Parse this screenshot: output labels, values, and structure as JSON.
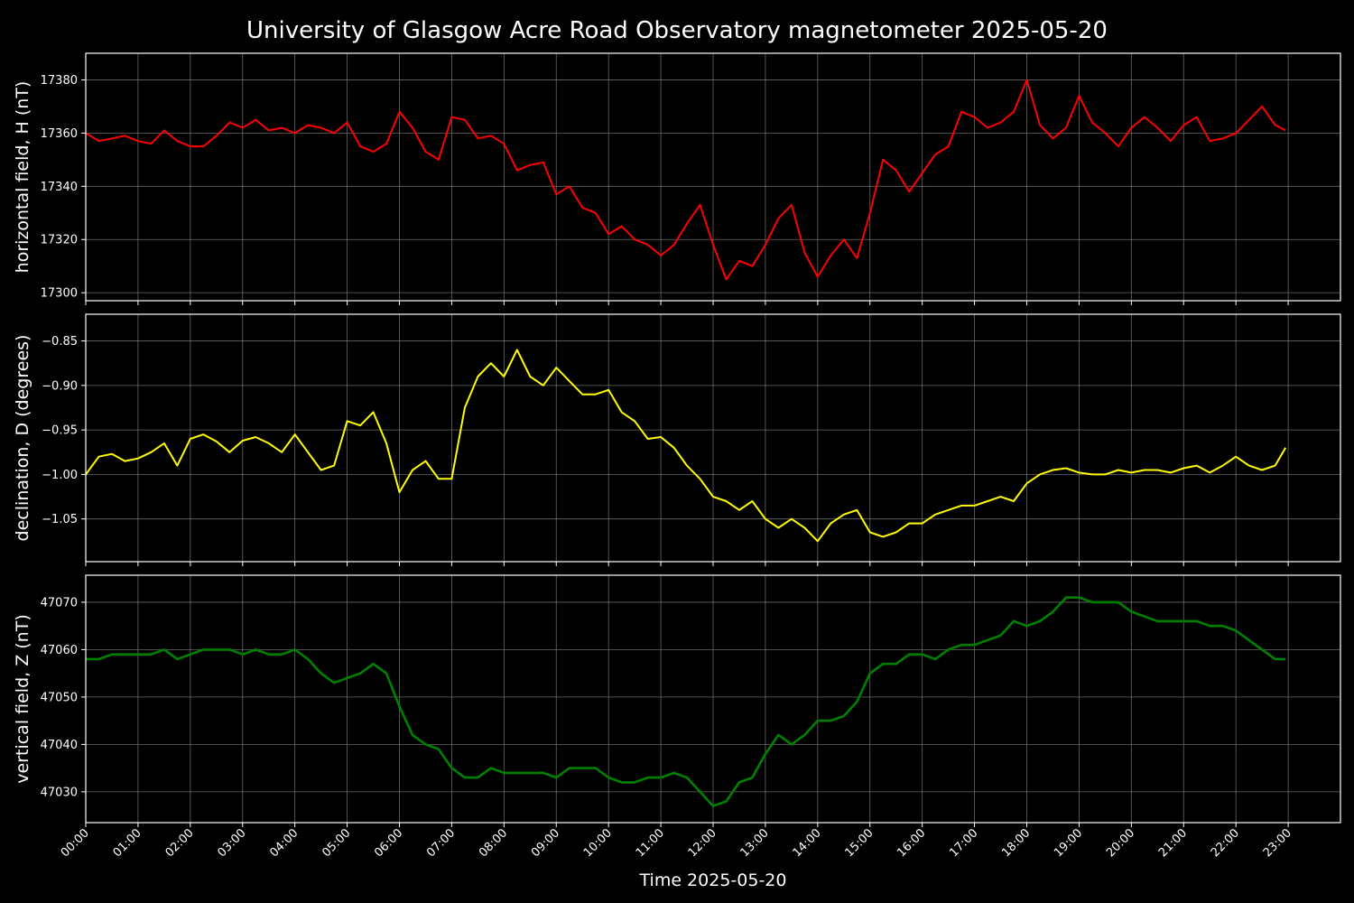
{
  "chart_data": {
    "type": "line",
    "title": "University of Glasgow Acre Road Observatory magnetometer 2025-05-20",
    "xlabel": "Time 2025-05-20",
    "x_unit": "hours",
    "xlim": [
      0,
      24
    ],
    "x_ticks": [
      "00:00",
      "01:00",
      "02:00",
      "03:00",
      "04:00",
      "05:00",
      "06:00",
      "07:00",
      "08:00",
      "09:00",
      "10:00",
      "11:00",
      "12:00",
      "13:00",
      "14:00",
      "15:00",
      "16:00",
      "17:00",
      "18:00",
      "19:00",
      "20:00",
      "21:00",
      "22:00",
      "23:00"
    ],
    "grid": true,
    "background": "#000000",
    "panels": [
      {
        "ylabel": "horizontal field, H (nT)",
        "color": "#ff0000",
        "ylim": [
          17297,
          17390
        ],
        "y_ticks": [
          17300,
          17320,
          17340,
          17360,
          17380
        ],
        "y_tick_labels": [
          "17300",
          "17320",
          "17340",
          "17360",
          "17380"
        ],
        "x": [
          0,
          0.25,
          0.5,
          0.75,
          1,
          1.25,
          1.5,
          1.75,
          2,
          2.25,
          2.5,
          2.75,
          3,
          3.25,
          3.5,
          3.75,
          4,
          4.25,
          4.5,
          4.75,
          5,
          5.25,
          5.5,
          5.75,
          6,
          6.25,
          6.5,
          6.75,
          7,
          7.25,
          7.5,
          7.75,
          8,
          8.25,
          8.5,
          8.75,
          9,
          9.25,
          9.5,
          9.75,
          10,
          10.25,
          10.5,
          10.75,
          11,
          11.25,
          11.5,
          11.75,
          12,
          12.25,
          12.5,
          12.75,
          13,
          13.25,
          13.5,
          13.75,
          14,
          14.25,
          14.5,
          14.75,
          15,
          15.25,
          15.5,
          15.75,
          16,
          16.25,
          16.5,
          16.75,
          17,
          17.25,
          17.5,
          17.75,
          18,
          18.25,
          18.5,
          18.75,
          19,
          19.25,
          19.5,
          19.75,
          20,
          20.25,
          20.5,
          20.75,
          21,
          21.25,
          21.5,
          21.75,
          22,
          22.25,
          22.5,
          22.75,
          22.95
        ],
        "values": [
          17360,
          17357,
          17358,
          17359,
          17357,
          17356,
          17361,
          17357,
          17355,
          17355,
          17359,
          17364,
          17362,
          17365,
          17361,
          17362,
          17360,
          17363,
          17362,
          17360,
          17364,
          17355,
          17353,
          17356,
          17368,
          17362,
          17353,
          17350,
          17366,
          17365,
          17358,
          17359,
          17356,
          17346,
          17348,
          17349,
          17337,
          17340,
          17332,
          17330,
          17322,
          17325,
          17320,
          17318,
          17314,
          17318,
          17326,
          17333,
          17318,
          17305,
          17312,
          17310,
          17318,
          17328,
          17333,
          17315,
          17306,
          17314,
          17320,
          17313,
          17330,
          17350,
          17346,
          17338,
          17345,
          17352,
          17355,
          17368,
          17366,
          17362,
          17364,
          17368,
          17380,
          17363,
          17358,
          17362,
          17374,
          17364,
          17360,
          17355,
          17362,
          17366,
          17362,
          17357,
          17363,
          17366,
          17357,
          17358,
          17360,
          17365,
          17370,
          17363,
          17361
        ]
      },
      {
        "ylabel": "declination, D (degrees)",
        "color": "#ffff00",
        "ylim": [
          -1.098,
          -0.82
        ],
        "y_ticks": [
          -1.05,
          -1.0,
          -0.95,
          -0.9,
          -0.85
        ],
        "y_tick_labels": [
          "−1.05",
          "−1.00",
          "−0.95",
          "−0.90",
          "−0.85"
        ],
        "x": [
          0,
          0.25,
          0.5,
          0.75,
          1,
          1.25,
          1.5,
          1.75,
          2,
          2.25,
          2.5,
          2.75,
          3,
          3.25,
          3.5,
          3.75,
          4,
          4.25,
          4.5,
          4.75,
          5,
          5.25,
          5.5,
          5.75,
          6,
          6.25,
          6.5,
          6.75,
          7,
          7.25,
          7.5,
          7.75,
          8,
          8.25,
          8.5,
          8.75,
          9,
          9.25,
          9.5,
          9.75,
          10,
          10.25,
          10.5,
          10.75,
          11,
          11.25,
          11.5,
          11.75,
          12,
          12.25,
          12.5,
          12.75,
          13,
          13.25,
          13.5,
          13.75,
          14,
          14.25,
          14.5,
          14.75,
          15,
          15.25,
          15.5,
          15.75,
          16,
          16.25,
          16.5,
          16.75,
          17,
          17.25,
          17.5,
          17.75,
          18,
          18.25,
          18.5,
          18.75,
          19,
          19.25,
          19.5,
          19.75,
          20,
          20.25,
          20.5,
          20.75,
          21,
          21.25,
          21.5,
          21.75,
          22,
          22.25,
          22.5,
          22.75,
          22.95
        ],
        "values": [
          -1.0,
          -0.98,
          -0.977,
          -0.985,
          -0.982,
          -0.975,
          -0.965,
          -0.99,
          -0.96,
          -0.955,
          -0.963,
          -0.975,
          -0.962,
          -0.958,
          -0.965,
          -0.975,
          -0.955,
          -0.975,
          -0.995,
          -0.99,
          -0.94,
          -0.945,
          -0.93,
          -0.965,
          -1.02,
          -0.995,
          -0.985,
          -1.005,
          -1.005,
          -0.925,
          -0.89,
          -0.875,
          -0.89,
          -0.86,
          -0.89,
          -0.9,
          -0.88,
          -0.895,
          -0.91,
          -0.91,
          -0.905,
          -0.93,
          -0.94,
          -0.96,
          -0.958,
          -0.97,
          -0.99,
          -1.005,
          -1.025,
          -1.03,
          -1.04,
          -1.03,
          -1.05,
          -1.06,
          -1.05,
          -1.06,
          -1.075,
          -1.055,
          -1.045,
          -1.04,
          -1.065,
          -1.07,
          -1.065,
          -1.055,
          -1.055,
          -1.045,
          -1.04,
          -1.035,
          -1.035,
          -1.03,
          -1.025,
          -1.03,
          -1.01,
          -1.0,
          -0.995,
          -0.993,
          -0.998,
          -1.0,
          -1.0,
          -0.995,
          -0.998,
          -0.995,
          -0.995,
          -0.998,
          -0.993,
          -0.99,
          -0.998,
          -0.99,
          -0.98,
          -0.99,
          -0.995,
          -0.99,
          -0.97
        ]
      },
      {
        "ylabel": "vertical field, Z (nT)",
        "color": "#008000",
        "ylim": [
          47023.5,
          47075.7
        ],
        "y_ticks": [
          47030,
          47040,
          47050,
          47060,
          47070
        ],
        "y_tick_labels": [
          "47030",
          "47040",
          "47050",
          "47060",
          "47070"
        ],
        "x": [
          0,
          0.25,
          0.5,
          0.75,
          1,
          1.25,
          1.5,
          1.75,
          2,
          2.25,
          2.5,
          2.75,
          3,
          3.25,
          3.5,
          3.75,
          4,
          4.25,
          4.5,
          4.75,
          5,
          5.25,
          5.5,
          5.75,
          6,
          6.25,
          6.5,
          6.75,
          7,
          7.25,
          7.5,
          7.75,
          8,
          8.25,
          8.5,
          8.75,
          9,
          9.25,
          9.5,
          9.75,
          10,
          10.25,
          10.5,
          10.75,
          11,
          11.25,
          11.5,
          11.75,
          12,
          12.25,
          12.5,
          12.75,
          13,
          13.25,
          13.5,
          13.75,
          14,
          14.25,
          14.5,
          14.75,
          15,
          15.25,
          15.5,
          15.75,
          16,
          16.25,
          16.5,
          16.75,
          17,
          17.25,
          17.5,
          17.75,
          18,
          18.25,
          18.5,
          18.75,
          19,
          19.25,
          19.5,
          19.75,
          20,
          20.25,
          20.5,
          20.75,
          21,
          21.25,
          21.5,
          21.75,
          22,
          22.25,
          22.5,
          22.75,
          22.95
        ],
        "values": [
          47058,
          47058,
          47059,
          47059,
          47059,
          47059,
          47060,
          47058,
          47059,
          47060,
          47060,
          47060,
          47059,
          47060,
          47059,
          47059,
          47060,
          47058,
          47055,
          47053,
          47054,
          47055,
          47057,
          47055,
          47048,
          47042,
          47040,
          47039,
          47035,
          47033,
          47033,
          47035,
          47034,
          47034,
          47034,
          47034,
          47033,
          47035,
          47035,
          47035,
          47033,
          47032,
          47032,
          47033,
          47033,
          47034,
          47033,
          47030,
          47027,
          47028,
          47032,
          47033,
          47038,
          47042,
          47040,
          47042,
          47045,
          47045,
          47046,
          47049,
          47055,
          47057,
          47057,
          47059,
          47059,
          47058,
          47060,
          47061,
          47061,
          47062,
          47063,
          47066,
          47065,
          47066,
          47068,
          47071,
          47071,
          47070,
          47070,
          47070,
          47068,
          47067,
          47066,
          47066,
          47066,
          47066,
          47065,
          47065,
          47064,
          47062,
          47060,
          47058,
          47058
        ]
      }
    ]
  }
}
